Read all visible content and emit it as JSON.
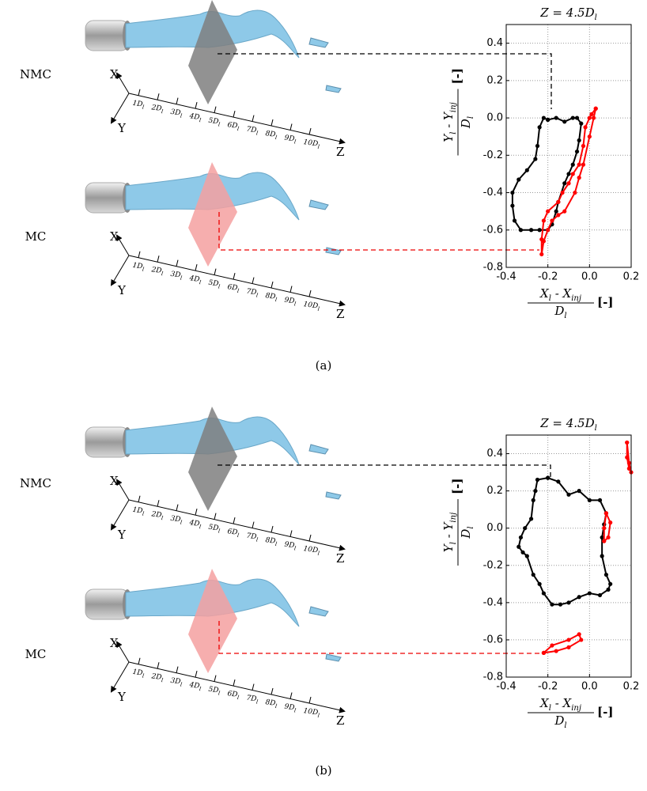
{
  "figure": {
    "panels": [
      {
        "label": "(a)",
        "rows": [
          "NMC",
          "MC"
        ]
      },
      {
        "label": "(b)",
        "rows": [
          "NMC",
          "MC"
        ]
      }
    ],
    "axis3d": {
      "ticks": [
        "1D",
        "2D",
        "3D",
        "4D",
        "5D",
        "6D",
        "7D",
        "8D",
        "9D",
        "10D"
      ],
      "tick_sub": "l",
      "labels": [
        "X",
        "Y",
        "Z"
      ]
    }
  },
  "chart_data": [
    {
      "type": "scatter",
      "title": "Z = 4.5D",
      "title_sub": "l",
      "xlabel": {
        "num": [
          [
            "X",
            "l"
          ],
          [
            " - X",
            "inj"
          ]
        ],
        "den": [
          [
            "D",
            "l"
          ]
        ],
        "unit": "[-]"
      },
      "ylabel": {
        "num": [
          [
            "Y",
            "l"
          ],
          [
            " - Y",
            "inj"
          ]
        ],
        "den": [
          [
            "D",
            "l"
          ]
        ],
        "unit": "[-]"
      },
      "xlim": [
        -0.4,
        0.2
      ],
      "ylim": [
        -0.8,
        0.5
      ],
      "grid": true,
      "xticks": [
        -0.4,
        -0.2,
        {
          "value": 0,
          "label": "0.0"
        },
        0.2
      ],
      "yticks": [
        -0.8,
        -0.6,
        -0.4,
        -0.2,
        {
          "value": 0,
          "label": "0.0"
        },
        0.2,
        0.4
      ],
      "series": [
        {
          "color": "#000000",
          "x": [
            -0.2,
            -0.22,
            -0.24,
            -0.25,
            -0.26,
            -0.3,
            -0.34,
            -0.37,
            -0.37,
            -0.36,
            -0.33,
            -0.28,
            -0.24,
            -0.2,
            -0.18,
            -0.16,
            -0.15,
            -0.12,
            -0.1,
            -0.08,
            -0.06,
            -0.05,
            -0.04,
            -0.06,
            -0.08,
            -0.12,
            -0.16,
            -0.2
          ],
          "values": [
            -0.01,
            0.0,
            -0.05,
            -0.15,
            -0.22,
            -0.28,
            -0.33,
            -0.4,
            -0.47,
            -0.55,
            -0.6,
            -0.6,
            -0.6,
            -0.6,
            -0.57,
            -0.5,
            -0.45,
            -0.35,
            -0.3,
            -0.25,
            -0.18,
            -0.12,
            -0.03,
            0.0,
            0.0,
            -0.02,
            0.0,
            -0.01
          ]
        },
        {
          "color": "#ff0000",
          "x": [
            0.03,
            0.01,
            0.0,
            -0.02,
            -0.03,
            -0.05,
            -0.08,
            -0.1,
            -0.13,
            -0.15,
            -0.2,
            -0.22,
            -0.23,
            -0.23,
            -0.22,
            -0.2,
            -0.18,
            -0.15,
            -0.12,
            -0.07,
            -0.05,
            -0.03,
            0.0,
            0.02,
            0.03
          ],
          "values": [
            0.05,
            0.02,
            0.0,
            -0.05,
            -0.15,
            -0.25,
            -0.3,
            -0.35,
            -0.4,
            -0.45,
            -0.5,
            -0.55,
            -0.65,
            -0.73,
            -0.66,
            -0.6,
            -0.55,
            -0.52,
            -0.5,
            -0.4,
            -0.32,
            -0.25,
            -0.1,
            0.0,
            0.05
          ]
        }
      ]
    },
    {
      "type": "scatter",
      "title": "Z = 4.5D",
      "title_sub": "l",
      "xlabel": {
        "num": [
          [
            "X",
            "l"
          ],
          [
            " - X",
            "inj"
          ]
        ],
        "den": [
          [
            "D",
            "l"
          ]
        ],
        "unit": "[-]"
      },
      "ylabel": {
        "num": [
          [
            "Y",
            "l"
          ],
          [
            " - Y",
            "inj"
          ]
        ],
        "den": [
          [
            "D",
            "l"
          ]
        ],
        "unit": "[-]"
      },
      "xlim": [
        -0.4,
        0.2
      ],
      "ylim": [
        -0.8,
        0.5
      ],
      "grid": true,
      "xticks": [
        -0.4,
        -0.2,
        {
          "value": 0,
          "label": "0.0"
        },
        0.2
      ],
      "yticks": [
        -0.8,
        -0.6,
        -0.4,
        -0.2,
        {
          "value": 0,
          "label": "0.0"
        },
        0.2,
        0.4
      ],
      "series": [
        {
          "color": "#000000",
          "x": [
            -0.2,
            -0.25,
            -0.26,
            -0.27,
            -0.28,
            -0.31,
            -0.33,
            -0.34,
            -0.32,
            -0.3,
            -0.27,
            -0.24,
            -0.22,
            -0.18,
            -0.14,
            -0.1,
            -0.05,
            0.0,
            0.05,
            0.09,
            0.1,
            0.08,
            0.06,
            0.06,
            0.07,
            0.08,
            0.05,
            0.0,
            -0.05,
            -0.1,
            -0.15,
            -0.2
          ],
          "values": [
            0.27,
            0.26,
            0.2,
            0.15,
            0.05,
            0.0,
            -0.05,
            -0.1,
            -0.13,
            -0.15,
            -0.25,
            -0.3,
            -0.35,
            -0.41,
            -0.41,
            -0.4,
            -0.37,
            -0.35,
            -0.36,
            -0.33,
            -0.3,
            -0.25,
            -0.15,
            -0.05,
            0.02,
            0.08,
            0.15,
            0.15,
            0.2,
            0.18,
            0.25,
            0.27
          ]
        },
        {
          "color": "#ff0000",
          "x": [
            0.08,
            0.1,
            0.09,
            0.07,
            0.07,
            0.08,
            null,
            0.18,
            0.18,
            0.19,
            0.2,
            0.19,
            0.18,
            null,
            -0.22,
            -0.18,
            -0.1,
            -0.05,
            -0.04,
            -0.1,
            -0.16,
            -0.22
          ],
          "values": [
            0.08,
            0.03,
            -0.05,
            -0.07,
            0.0,
            0.08,
            null,
            0.46,
            0.38,
            0.32,
            0.3,
            0.35,
            0.46,
            null,
            -0.67,
            -0.63,
            -0.6,
            -0.57,
            -0.6,
            -0.64,
            -0.66,
            -0.67
          ]
        }
      ]
    }
  ]
}
